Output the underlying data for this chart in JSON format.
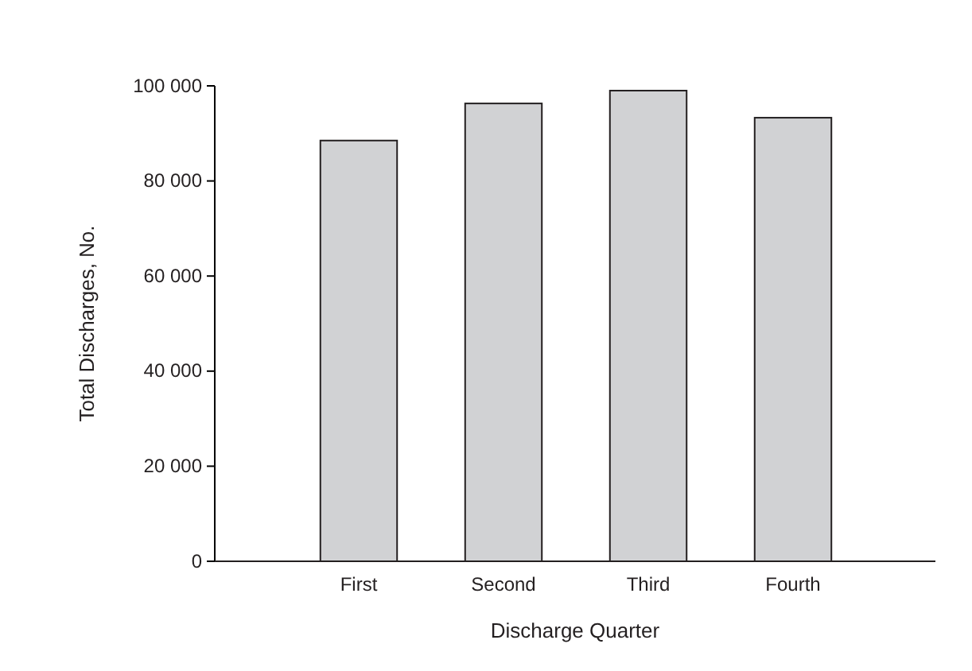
{
  "chart_data": {
    "type": "bar",
    "xlabel": "Discharge Quarter",
    "ylabel": "Total Discharges, No.",
    "categories": [
      "First",
      "Second",
      "Third",
      "Fourth"
    ],
    "values": [
      88500,
      96300,
      99000,
      93300
    ],
    "color": "#d1d2d4",
    "ylim": [
      0,
      100000
    ],
    "yticks": [
      0,
      {
        "value": 20000,
        "label": "20 000"
      },
      {
        "value": 40000,
        "label": "40 000"
      },
      {
        "value": 60000,
        "label": "60 000"
      },
      {
        "value": 80000,
        "label": "80 000"
      },
      {
        "value": 100000,
        "label": "100 000"
      }
    ],
    "grid": false
  }
}
